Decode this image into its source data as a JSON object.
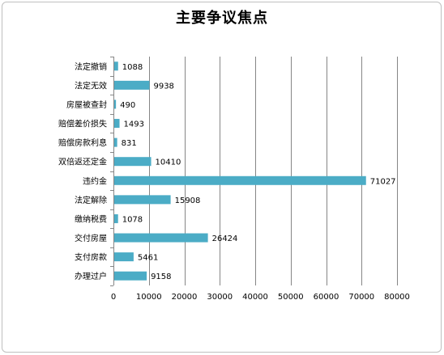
{
  "chart_data": {
    "type": "bar",
    "orientation": "horizontal",
    "title": "主要争议焦点",
    "xlabel": "",
    "ylabel": "",
    "categories": [
      "法定撤销",
      "法定无效",
      "房屋被查封",
      "赔偿差价损失",
      "赔偿房款利息",
      "双倍返还定金",
      "违约金",
      "法定解除",
      "缴纳税费",
      "交付房屋",
      "支付房款",
      "办理过户"
    ],
    "values": [
      1088,
      9938,
      490,
      1493,
      831,
      10410,
      71027,
      15908,
      1078,
      26424,
      5461,
      9158
    ],
    "xlim": [
      0,
      80000
    ],
    "xticks": [
      0,
      10000,
      20000,
      30000,
      40000,
      50000,
      60000,
      70000,
      80000
    ],
    "grid": "vertical",
    "legend": "none",
    "bar_color": "#4bacc6",
    "gridline_color": "#868686"
  }
}
